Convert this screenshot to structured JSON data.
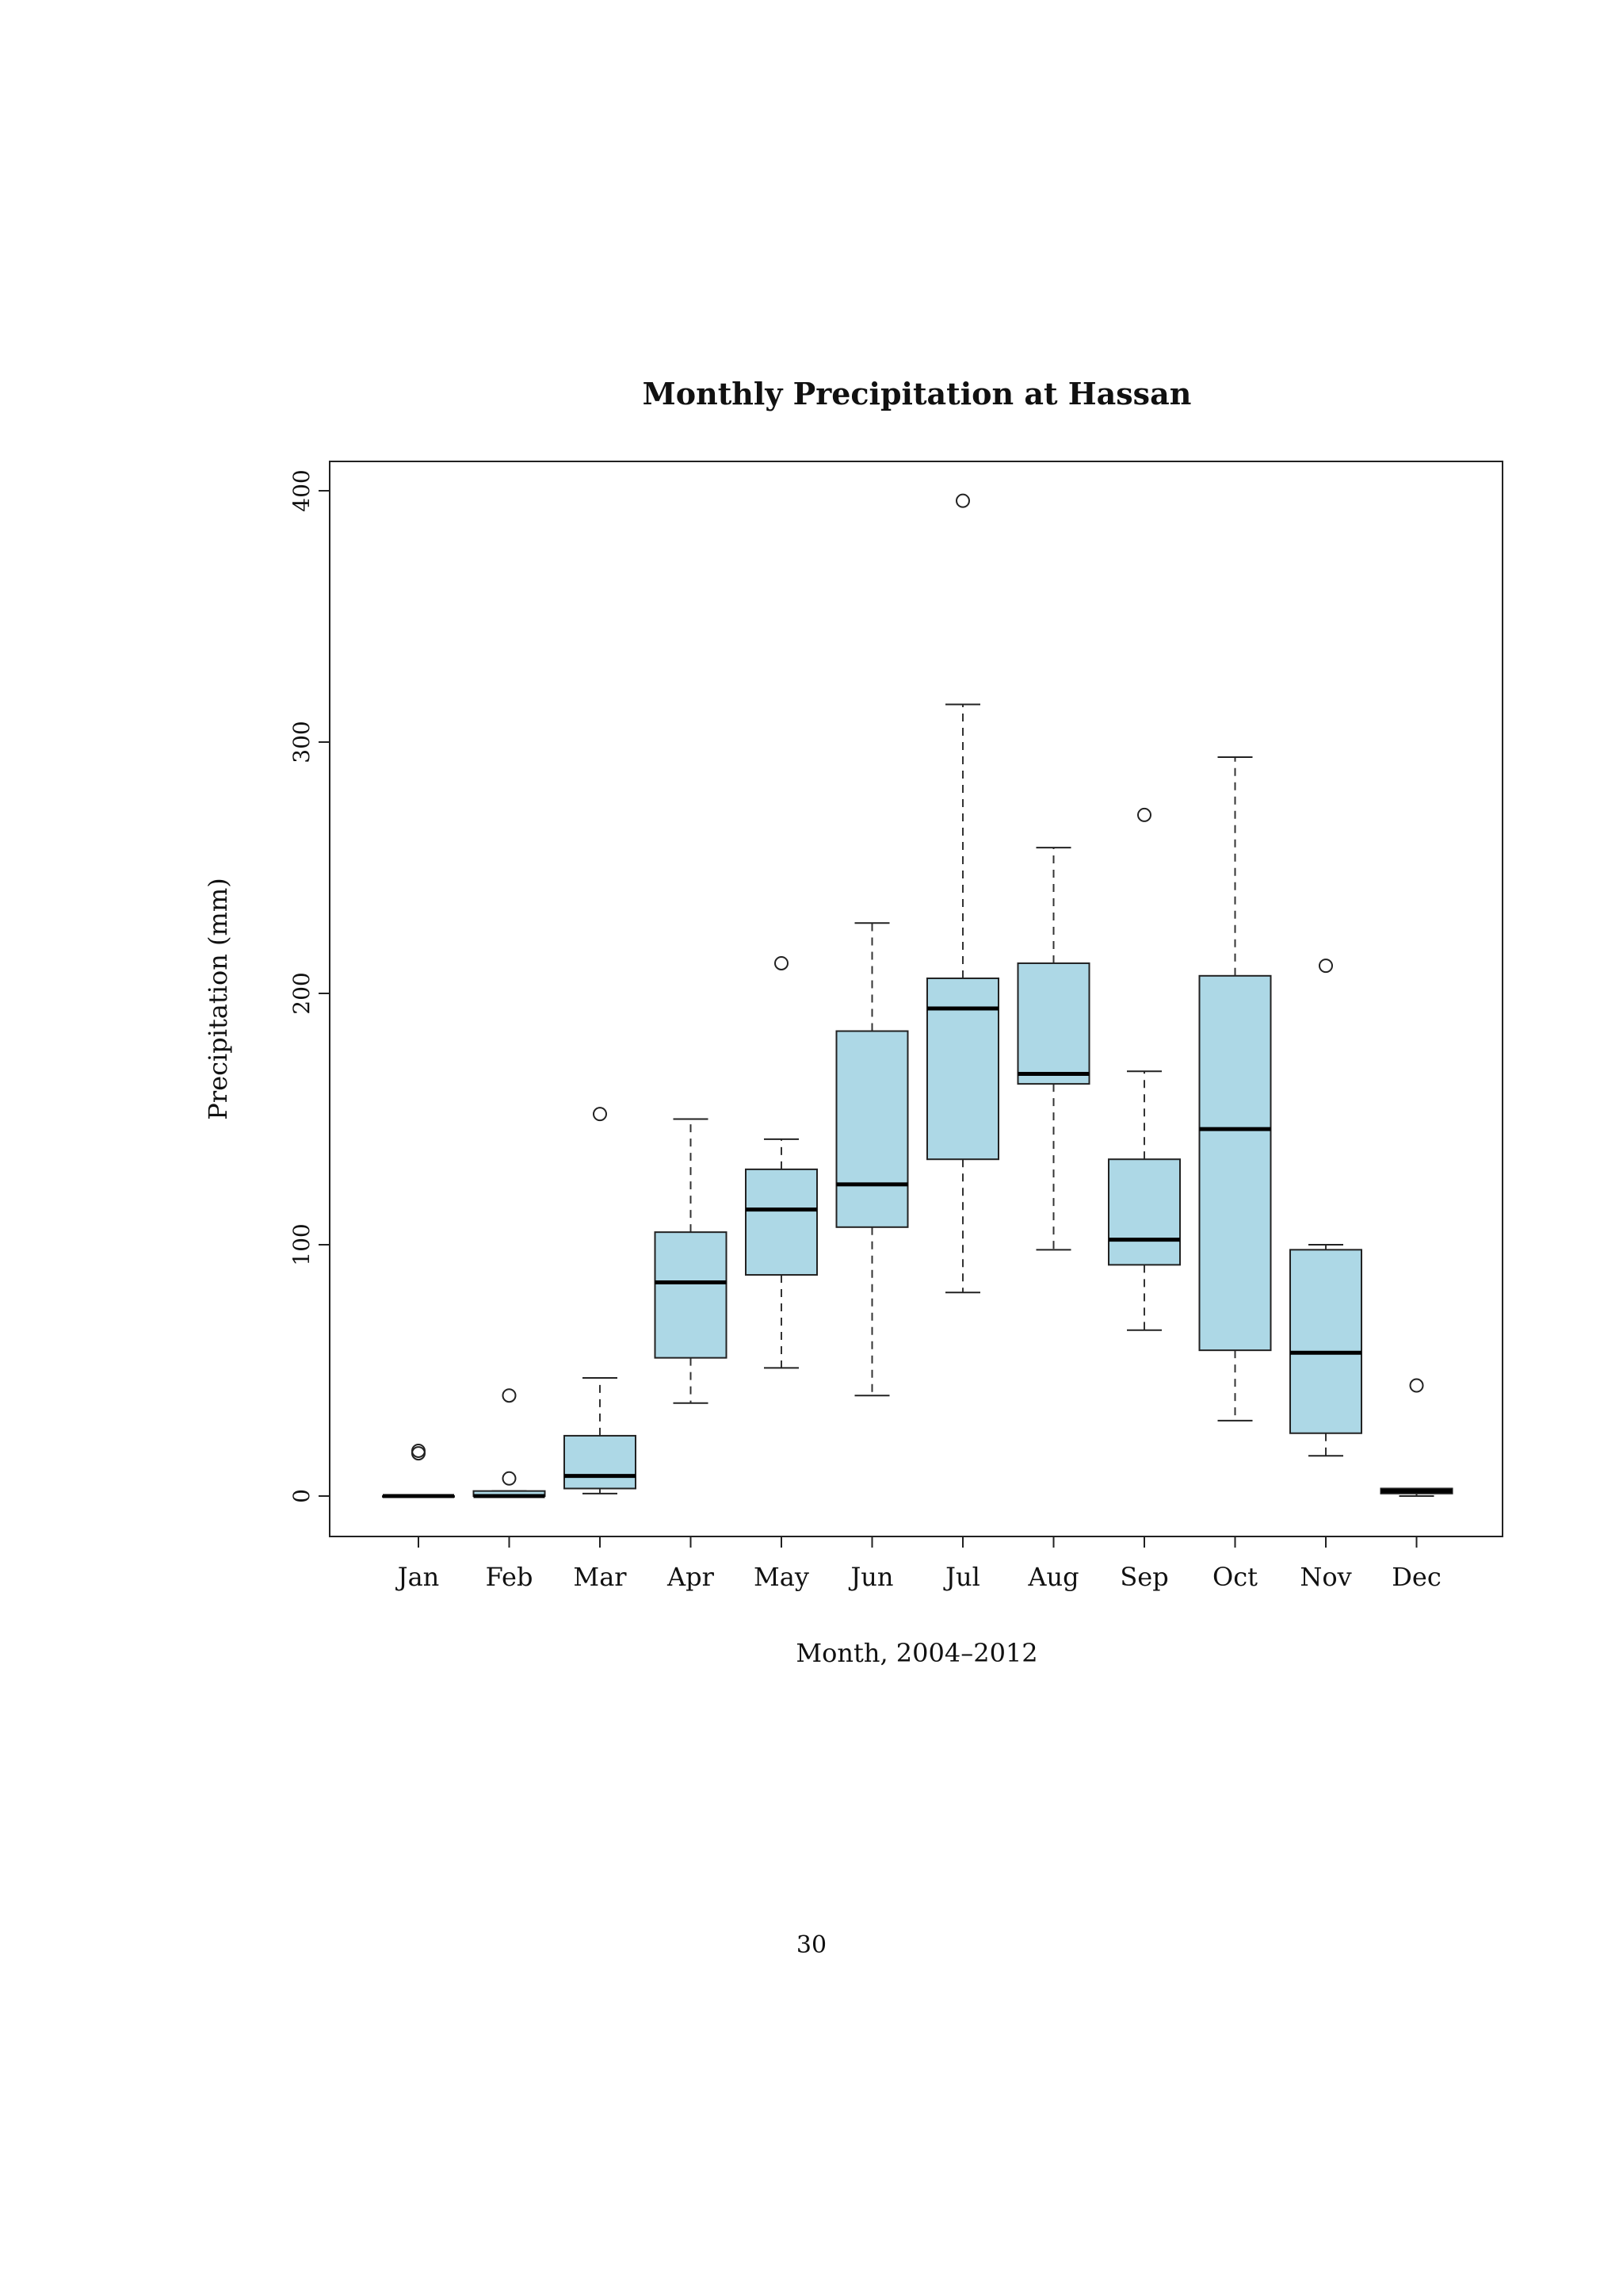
{
  "page": {
    "number": "30"
  },
  "chart_data": {
    "type": "boxplot",
    "title": "Monthly Precipitation at Hassan",
    "xlabel": "Month, 2004–2012",
    "ylabel": "Precipitation (mm)",
    "ylim": [
      -16,
      412
    ],
    "yticks": [
      0,
      100,
      200,
      300,
      400
    ],
    "ytick_labels": [
      "0",
      "100",
      "200",
      "300",
      "400"
    ],
    "grid": false,
    "box_color": "#add8e6",
    "categories": [
      "Jan",
      "Feb",
      "Mar",
      "Apr",
      "May",
      "Jun",
      "Jul",
      "Aug",
      "Sep",
      "Oct",
      "Nov",
      "Dec"
    ],
    "boxes": [
      {
        "min": 0,
        "q1": 0,
        "median": 0,
        "q3": 0,
        "max": 0,
        "outliers": [
          17,
          18
        ]
      },
      {
        "min": 0,
        "q1": 0,
        "median": 0,
        "q3": 2,
        "max": 2,
        "outliers": [
          7,
          40
        ]
      },
      {
        "min": 1,
        "q1": 3,
        "median": 8,
        "q3": 24,
        "max": 47,
        "outliers": [
          152
        ]
      },
      {
        "min": 37,
        "q1": 55,
        "median": 85,
        "q3": 105,
        "max": 150,
        "outliers": []
      },
      {
        "min": 51,
        "q1": 88,
        "median": 114,
        "q3": 130,
        "max": 142,
        "outliers": [
          212
        ]
      },
      {
        "min": 40,
        "q1": 107,
        "median": 124,
        "q3": 185,
        "max": 228,
        "outliers": []
      },
      {
        "min": 81,
        "q1": 134,
        "median": 194,
        "q3": 206,
        "max": 315,
        "outliers": [
          396
        ]
      },
      {
        "min": 98,
        "q1": 164,
        "median": 168,
        "q3": 212,
        "max": 258,
        "outliers": []
      },
      {
        "min": 66,
        "q1": 92,
        "median": 102,
        "q3": 134,
        "max": 169,
        "outliers": [
          271
        ]
      },
      {
        "min": 30,
        "q1": 58,
        "median": 146,
        "q3": 207,
        "max": 294,
        "outliers": []
      },
      {
        "min": 16,
        "q1": 25,
        "median": 57,
        "q3": 98,
        "max": 100,
        "outliers": [
          211
        ]
      },
      {
        "min": 0,
        "q1": 1,
        "median": 2,
        "q3": 3,
        "max": 3,
        "outliers": [
          44
        ]
      }
    ]
  }
}
